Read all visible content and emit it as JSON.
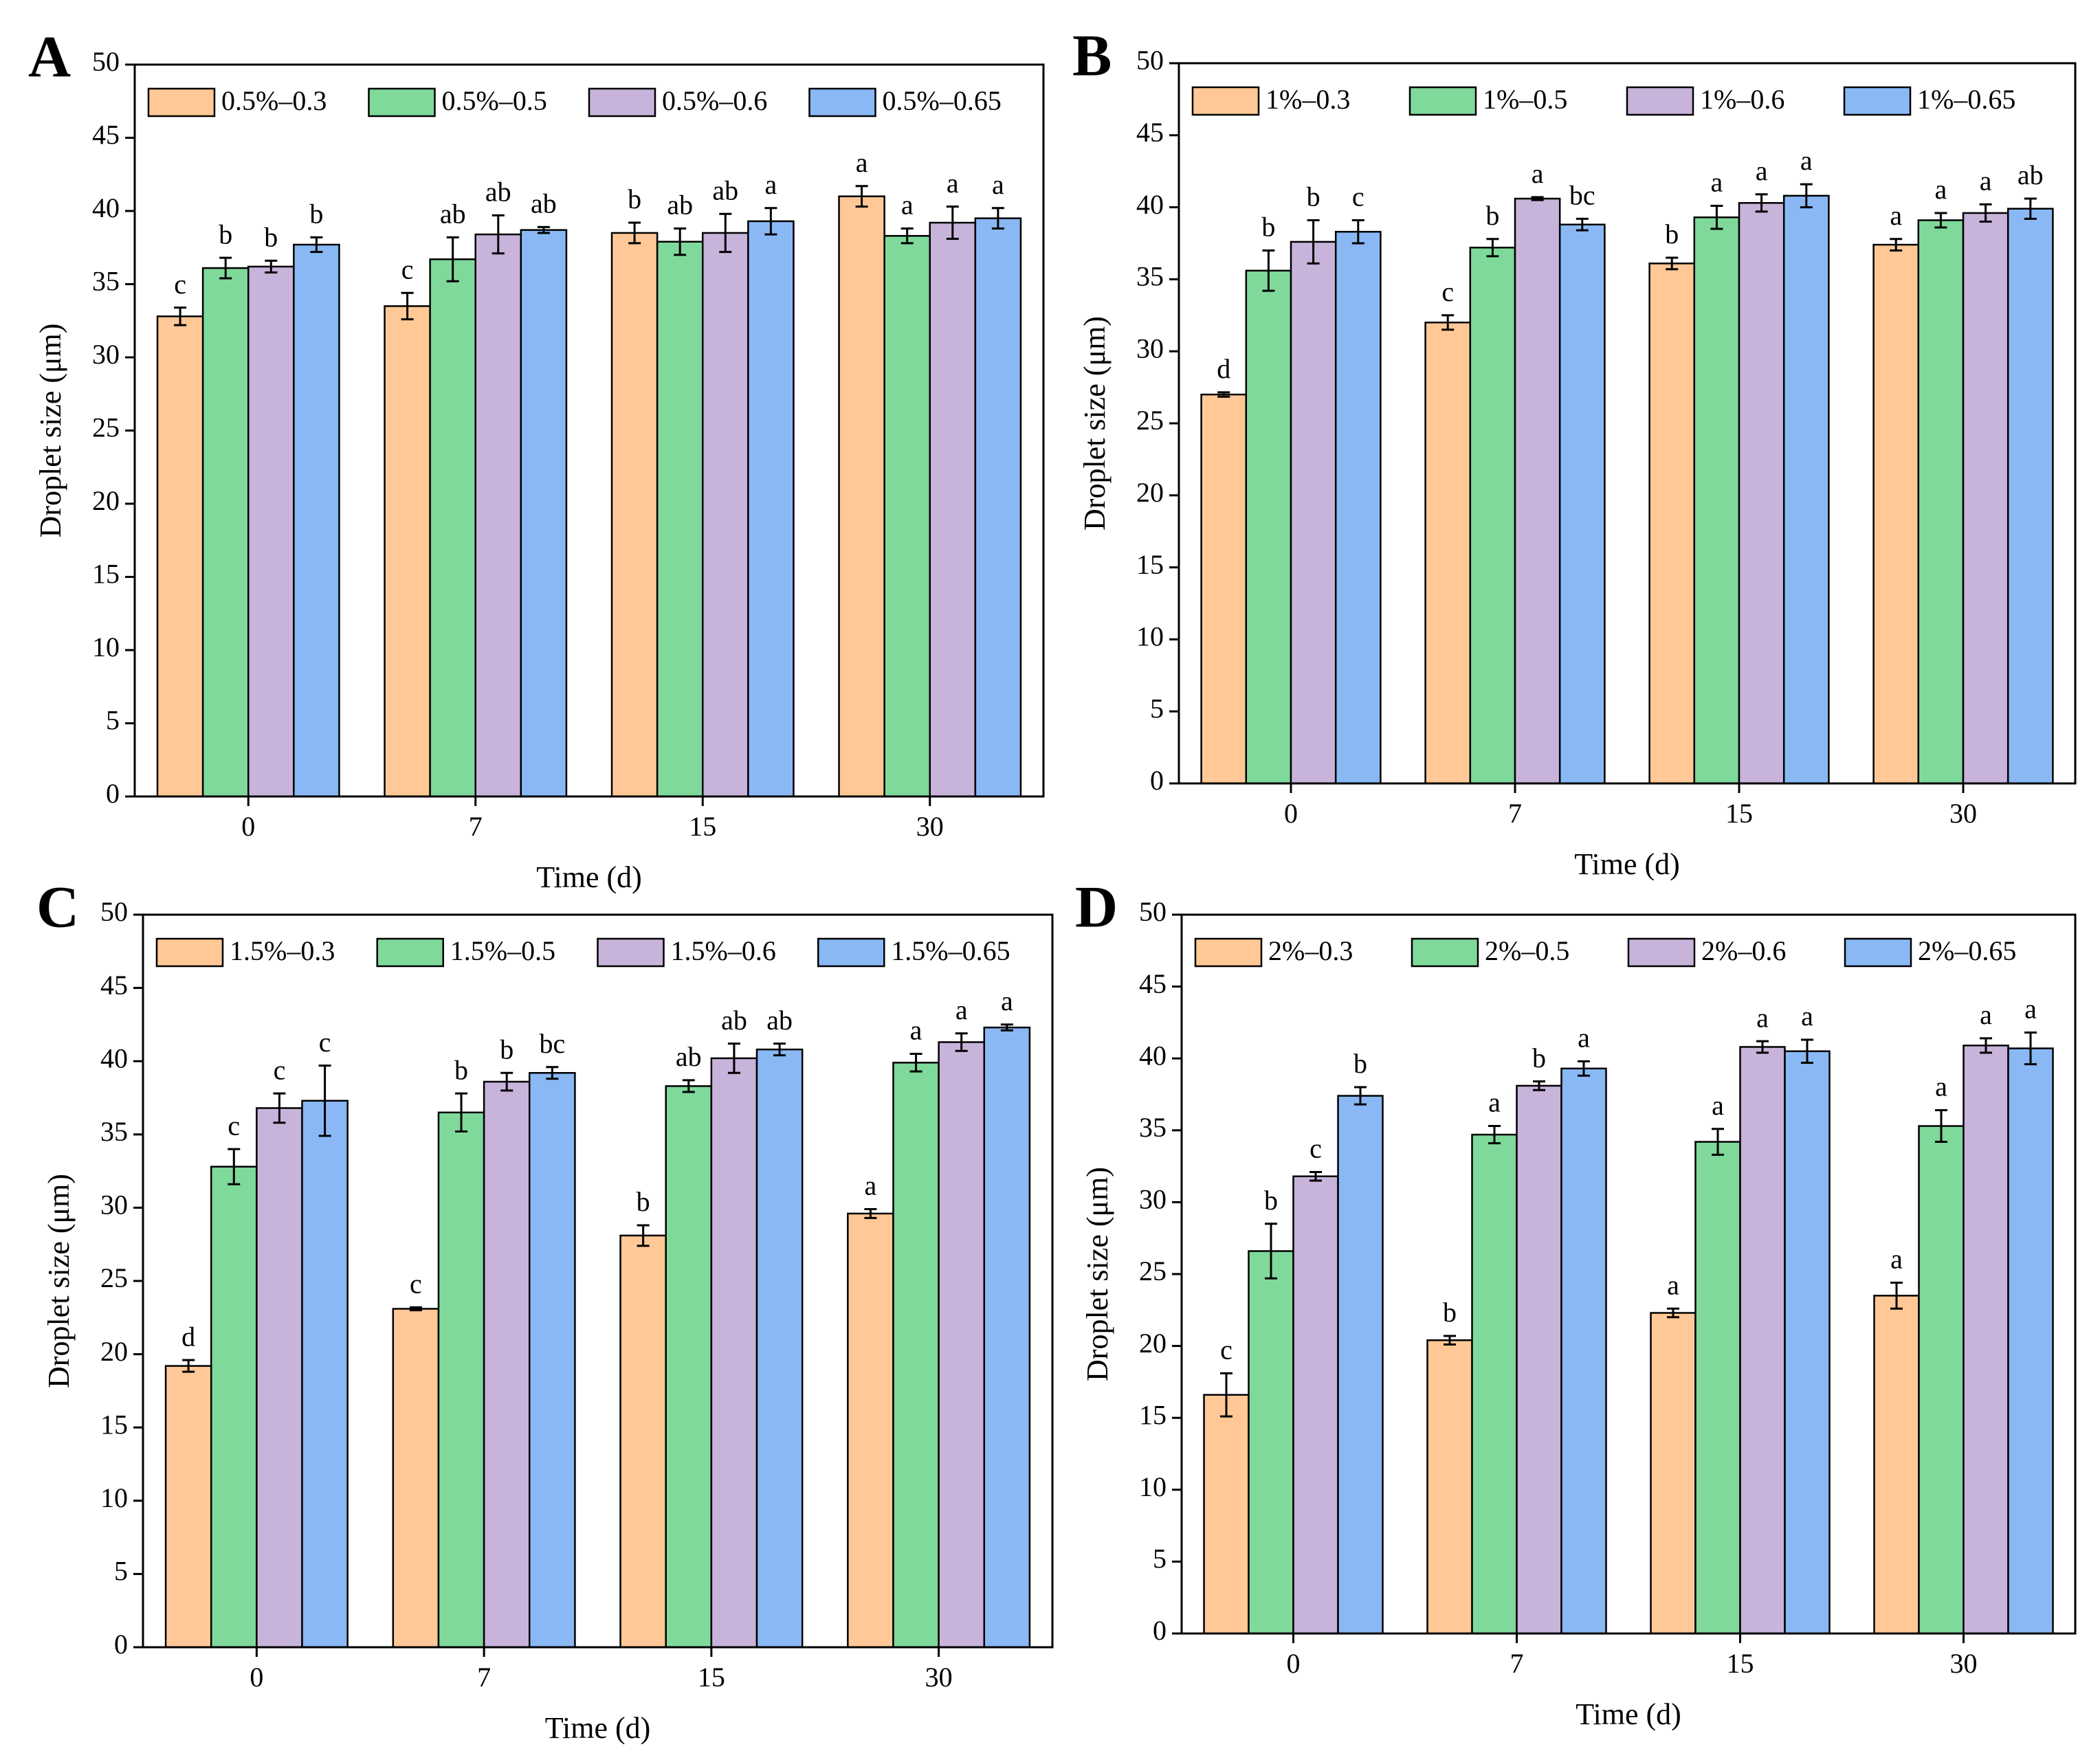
{
  "chart_data": [
    {
      "type": "bar",
      "panel_label": "A",
      "x_label": "Time (d)",
      "y_label": "Droplet size (μm)",
      "categories": [
        "0",
        "7",
        "15",
        "30"
      ],
      "ylim": [
        0,
        50
      ],
      "yticks": [
        0,
        5,
        10,
        15,
        20,
        25,
        30,
        35,
        40,
        45,
        50
      ],
      "series": [
        {
          "name": "0.5%–0.3",
          "color": "#ffc896",
          "values": [
            32.8,
            33.5,
            38.5,
            41.0
          ],
          "errors": [
            0.6,
            0.9,
            0.7,
            0.7
          ],
          "annotations": [
            "c",
            "c",
            "b",
            "a"
          ]
        },
        {
          "name": "0.5%–0.5",
          "color": "#7fd99a",
          "values": [
            36.1,
            36.7,
            37.9,
            38.3
          ],
          "errors": [
            0.7,
            1.5,
            0.9,
            0.5
          ],
          "annotations": [
            "b",
            "ab",
            "ab",
            "a"
          ]
        },
        {
          "name": "0.5%–0.6",
          "color": "#c8b3db",
          "values": [
            36.2,
            38.4,
            38.5,
            39.2
          ],
          "errors": [
            0.4,
            1.3,
            1.3,
            1.1
          ],
          "annotations": [
            "b",
            "ab",
            "ab",
            "a"
          ]
        },
        {
          "name": "0.5%–0.65",
          "color": "#8ab8f5",
          "values": [
            37.7,
            38.7,
            39.3,
            39.5
          ],
          "errors": [
            0.5,
            0.2,
            0.9,
            0.7
          ],
          "annotations": [
            "b",
            "ab",
            "a",
            "a"
          ]
        }
      ]
    },
    {
      "type": "bar",
      "panel_label": "B",
      "x_label": "Time (d)",
      "y_label": "Droplet size (μm)",
      "categories": [
        "0",
        "7",
        "15",
        "30"
      ],
      "ylim": [
        0,
        50
      ],
      "yticks": [
        0,
        5,
        10,
        15,
        20,
        25,
        30,
        35,
        40,
        45,
        50
      ],
      "series": [
        {
          "name": "1%–0.3",
          "color": "#ffc896",
          "values": [
            27.0,
            32.0,
            36.1,
            37.4
          ],
          "errors": [
            0.15,
            0.5,
            0.4,
            0.4
          ],
          "annotations": [
            "d",
            "c",
            "b",
            "a"
          ]
        },
        {
          "name": "1%–0.5",
          "color": "#7fd99a",
          "values": [
            35.6,
            37.2,
            39.3,
            39.1
          ],
          "errors": [
            1.4,
            0.6,
            0.8,
            0.5
          ],
          "annotations": [
            "b",
            "b",
            "a",
            "a"
          ]
        },
        {
          "name": "1%–0.6",
          "color": "#c8b3db",
          "values": [
            37.6,
            40.6,
            40.3,
            39.6
          ],
          "errors": [
            1.5,
            0.1,
            0.6,
            0.6
          ],
          "annotations": [
            "b",
            "a",
            "a",
            "a"
          ]
        },
        {
          "name": "1%–0.65",
          "color": "#8ab8f5",
          "values": [
            38.3,
            38.8,
            40.8,
            39.9
          ],
          "errors": [
            0.8,
            0.4,
            0.8,
            0.7
          ],
          "annotations": [
            "c",
            "bc",
            "a",
            "ab"
          ]
        }
      ]
    },
    {
      "type": "bar",
      "panel_label": "C",
      "x_label": "Time (d)",
      "y_label": "Droplet size (μm)",
      "categories": [
        "0",
        "7",
        "15",
        "30"
      ],
      "ylim": [
        0,
        50
      ],
      "yticks": [
        0,
        5,
        10,
        15,
        20,
        25,
        30,
        35,
        40,
        45,
        50
      ],
      "series": [
        {
          "name": "1.5%–0.3",
          "color": "#ffc896",
          "values": [
            19.2,
            23.1,
            28.1,
            29.6
          ],
          "errors": [
            0.4,
            0.1,
            0.7,
            0.3
          ],
          "annotations": [
            "d",
            "c",
            "b",
            "a"
          ]
        },
        {
          "name": "1.5%–0.5",
          "color": "#7fd99a",
          "values": [
            32.8,
            36.5,
            38.3,
            39.9
          ],
          "errors": [
            1.2,
            1.3,
            0.4,
            0.6
          ],
          "annotations": [
            "c",
            "b",
            "ab",
            "a"
          ]
        },
        {
          "name": "1.5%–0.6",
          "color": "#c8b3db",
          "values": [
            36.8,
            38.6,
            40.2,
            41.3
          ],
          "errors": [
            1.0,
            0.6,
            1.0,
            0.6
          ],
          "annotations": [
            "c",
            "b",
            "ab",
            "a"
          ]
        },
        {
          "name": "1.5%–0.65",
          "color": "#8ab8f5",
          "values": [
            37.3,
            39.2,
            40.8,
            42.3
          ],
          "errors": [
            2.4,
            0.4,
            0.4,
            0.2
          ],
          "annotations": [
            "c",
            "bc",
            "ab",
            "a"
          ]
        }
      ]
    },
    {
      "type": "bar",
      "panel_label": "D",
      "x_label": "Time (d)",
      "y_label": "Droplet size (μm)",
      "categories": [
        "0",
        "7",
        "15",
        "30"
      ],
      "ylim": [
        0,
        50
      ],
      "yticks": [
        0,
        5,
        10,
        15,
        20,
        25,
        30,
        35,
        40,
        45,
        50
      ],
      "series": [
        {
          "name": "2%–0.3",
          "color": "#ffc896",
          "values": [
            16.6,
            20.4,
            22.3,
            23.5
          ],
          "errors": [
            1.5,
            0.3,
            0.3,
            0.9
          ],
          "annotations": [
            "c",
            "b",
            "a",
            "a"
          ]
        },
        {
          "name": "2%–0.5",
          "color": "#7fd99a",
          "values": [
            26.6,
            34.7,
            34.2,
            35.3
          ],
          "errors": [
            1.9,
            0.6,
            0.9,
            1.1
          ],
          "annotations": [
            "b",
            "a",
            "a",
            "a"
          ]
        },
        {
          "name": "2%–0.6",
          "color": "#c8b3db",
          "values": [
            31.8,
            38.1,
            40.8,
            40.9
          ],
          "errors": [
            0.3,
            0.3,
            0.4,
            0.5
          ],
          "annotations": [
            "c",
            "b",
            "a",
            "a"
          ]
        },
        {
          "name": "2%–0.65",
          "color": "#8ab8f5",
          "values": [
            37.4,
            39.3,
            40.5,
            40.7
          ],
          "errors": [
            0.6,
            0.5,
            0.8,
            1.1
          ],
          "annotations": [
            "b",
            "a",
            "a",
            "a"
          ]
        }
      ]
    }
  ]
}
